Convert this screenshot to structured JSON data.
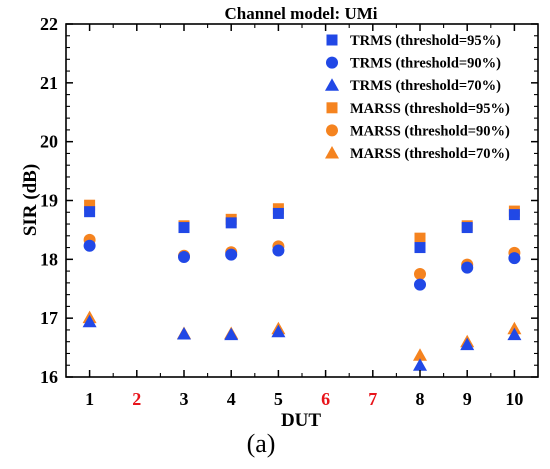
{
  "chart_data": {
    "type": "scatter",
    "title": "Channel model: UMi",
    "xlabel": "DUT",
    "ylabel": "SIR (dB)",
    "panel_label": "(a)",
    "ylim": [
      16,
      22
    ],
    "yticks": [
      "16",
      "17",
      "18",
      "19",
      "20",
      "21",
      "22"
    ],
    "xlim": [
      0.5,
      10.5
    ],
    "categories": [
      "1",
      "2",
      "3",
      "4",
      "5",
      "6",
      "7",
      "8",
      "9",
      "10"
    ],
    "highlighted_categories": [
      "2",
      "6",
      "7"
    ],
    "highlight_color": "#e8141b",
    "tick_color": "#000000",
    "grid": false,
    "legend_position": "top-right",
    "colors": {
      "TRMS": "#2148e6",
      "MARSS": "#f5831f"
    },
    "series": [
      {
        "name": "MARSS (threshold=95%)",
        "marker": "square",
        "color": "#f5831f",
        "x": [
          1,
          3,
          4,
          5,
          8,
          9,
          10
        ],
        "y": [
          18.92,
          18.57,
          18.68,
          18.86,
          18.36,
          18.57,
          18.82
        ]
      },
      {
        "name": "MARSS (threshold=90%)",
        "marker": "circle",
        "color": "#f5831f",
        "x": [
          1,
          3,
          4,
          5,
          8,
          9,
          10
        ],
        "y": [
          18.33,
          18.06,
          18.12,
          18.22,
          17.75,
          17.91,
          18.11
        ]
      },
      {
        "name": "MARSS (threshold=70%)",
        "marker": "triangle",
        "color": "#f5831f",
        "x": [
          1,
          3,
          4,
          5,
          8,
          9,
          10
        ],
        "y": [
          17.01,
          16.74,
          16.74,
          16.82,
          16.37,
          16.6,
          16.82
        ]
      },
      {
        "name": "TRMS (threshold=95%)",
        "marker": "square",
        "color": "#2148e6",
        "x": [
          1,
          3,
          4,
          5,
          8,
          9,
          10
        ],
        "y": [
          18.81,
          18.54,
          18.62,
          18.78,
          18.2,
          18.54,
          18.76
        ]
      },
      {
        "name": "TRMS (threshold=90%)",
        "marker": "circle",
        "color": "#2148e6",
        "x": [
          1,
          3,
          4,
          5,
          8,
          9,
          10
        ],
        "y": [
          18.23,
          18.04,
          18.08,
          18.15,
          17.57,
          17.86,
          18.02
        ]
      },
      {
        "name": "TRMS (threshold=70%)",
        "marker": "triangle",
        "color": "#2148e6",
        "x": [
          1,
          3,
          4,
          5,
          8,
          9,
          10
        ],
        "y": [
          16.94,
          16.73,
          16.72,
          16.77,
          16.2,
          16.55,
          16.72
        ]
      }
    ],
    "legend_order": [
      "TRMS (threshold=95%)",
      "TRMS (threshold=90%)",
      "TRMS (threshold=70%)",
      "MARSS (threshold=95%)",
      "MARSS (threshold=90%)",
      "MARSS (threshold=70%)"
    ]
  }
}
